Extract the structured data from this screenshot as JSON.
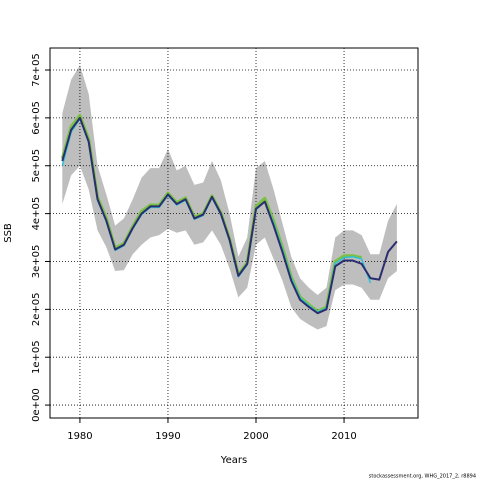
{
  "chart_data": {
    "type": "line",
    "xlabel": "Years",
    "ylabel": "SSB",
    "footnote": "stockassessment.org, WHG_2017_2, r8894",
    "x": [
      1978,
      1979,
      1980,
      1981,
      1982,
      1983,
      1984,
      1985,
      1986,
      1987,
      1988,
      1989,
      1990,
      1991,
      1992,
      1993,
      1994,
      1995,
      1996,
      1997,
      1998,
      1999,
      2000,
      2001,
      2002,
      2003,
      2004,
      2005,
      2006,
      2007,
      2008,
      2009,
      2010,
      2011,
      2012,
      2013,
      2014,
      2015,
      2016
    ],
    "band": {
      "color": "#bebebe",
      "upper": [
        610000,
        680000,
        710000,
        650000,
        500000,
        440000,
        375000,
        390000,
        430000,
        475000,
        495000,
        495000,
        535000,
        490000,
        500000,
        460000,
        465000,
        510000,
        470000,
        400000,
        310000,
        350000,
        495000,
        510000,
        450000,
        380000,
        310000,
        265000,
        245000,
        230000,
        245000,
        350000,
        365000,
        365000,
        355000,
        315000,
        315000,
        385000,
        420000
      ],
      "lower": [
        420000,
        480000,
        500000,
        450000,
        365000,
        330000,
        280000,
        282000,
        315000,
        335000,
        350000,
        355000,
        368000,
        360000,
        365000,
        335000,
        340000,
        365000,
        335000,
        285000,
        225000,
        245000,
        335000,
        350000,
        305000,
        260000,
        205000,
        180000,
        168000,
        158000,
        165000,
        240000,
        252000,
        252000,
        245000,
        220000,
        220000,
        265000,
        280000
      ]
    },
    "series": [
      {
        "color": "#7ac143",
        "values": [
          515000,
          582000,
          605000,
          555000,
          435000,
          390000,
          328000,
          338000,
          373000,
          405000,
          418000,
          418000,
          443000,
          423000,
          433000,
          393000,
          400000,
          437000,
          402000,
          347000,
          272000,
          298000,
          415000,
          432000,
          385000,
          330000,
          268000,
          226000,
          210000,
          196000,
          205000,
          300000,
          312000,
          312000,
          308000,
          null,
          null,
          null,
          null
        ]
      },
      {
        "color": "#2fc0d8",
        "values": [
          500000,
          570000,
          598000,
          548000,
          428000,
          383000,
          323000,
          333000,
          368000,
          398000,
          413000,
          413000,
          438000,
          418000,
          428000,
          388000,
          396000,
          433000,
          398000,
          343000,
          268000,
          293000,
          408000,
          425000,
          380000,
          325000,
          265000,
          224000,
          208000,
          194000,
          203000,
          296000,
          308000,
          310000,
          305000,
          255000,
          null,
          null,
          null
        ]
      },
      {
        "color": "#2b2d6e",
        "values": [
          510000,
          575000,
          600000,
          550000,
          430000,
          385000,
          325000,
          335000,
          370000,
          400000,
          415000,
          415000,
          440000,
          420000,
          430000,
          390000,
          398000,
          435000,
          400000,
          345000,
          270000,
          295000,
          410000,
          425000,
          375000,
          320000,
          260000,
          220000,
          205000,
          192000,
          200000,
          290000,
          302000,
          302000,
          295000,
          265000,
          262000,
          320000,
          342000
        ]
      }
    ],
    "xlim": [
      1976.6,
      2018.4
    ],
    "xticks": [
      1980,
      1990,
      2000,
      2010
    ],
    "ylim": [
      -27000,
      746000
    ],
    "yticks": [
      {
        "value": 0,
        "label": "0e+00"
      },
      {
        "value": 100000,
        "label": "1e+05"
      },
      {
        "value": 200000,
        "label": "2e+05"
      },
      {
        "value": 300000,
        "label": "3e+05"
      },
      {
        "value": 400000,
        "label": "4e+05"
      },
      {
        "value": 500000,
        "label": "5e+05"
      },
      {
        "value": 600000,
        "label": "6e+05"
      },
      {
        "value": 700000,
        "label": "7e+05"
      }
    ],
    "grid": true
  }
}
